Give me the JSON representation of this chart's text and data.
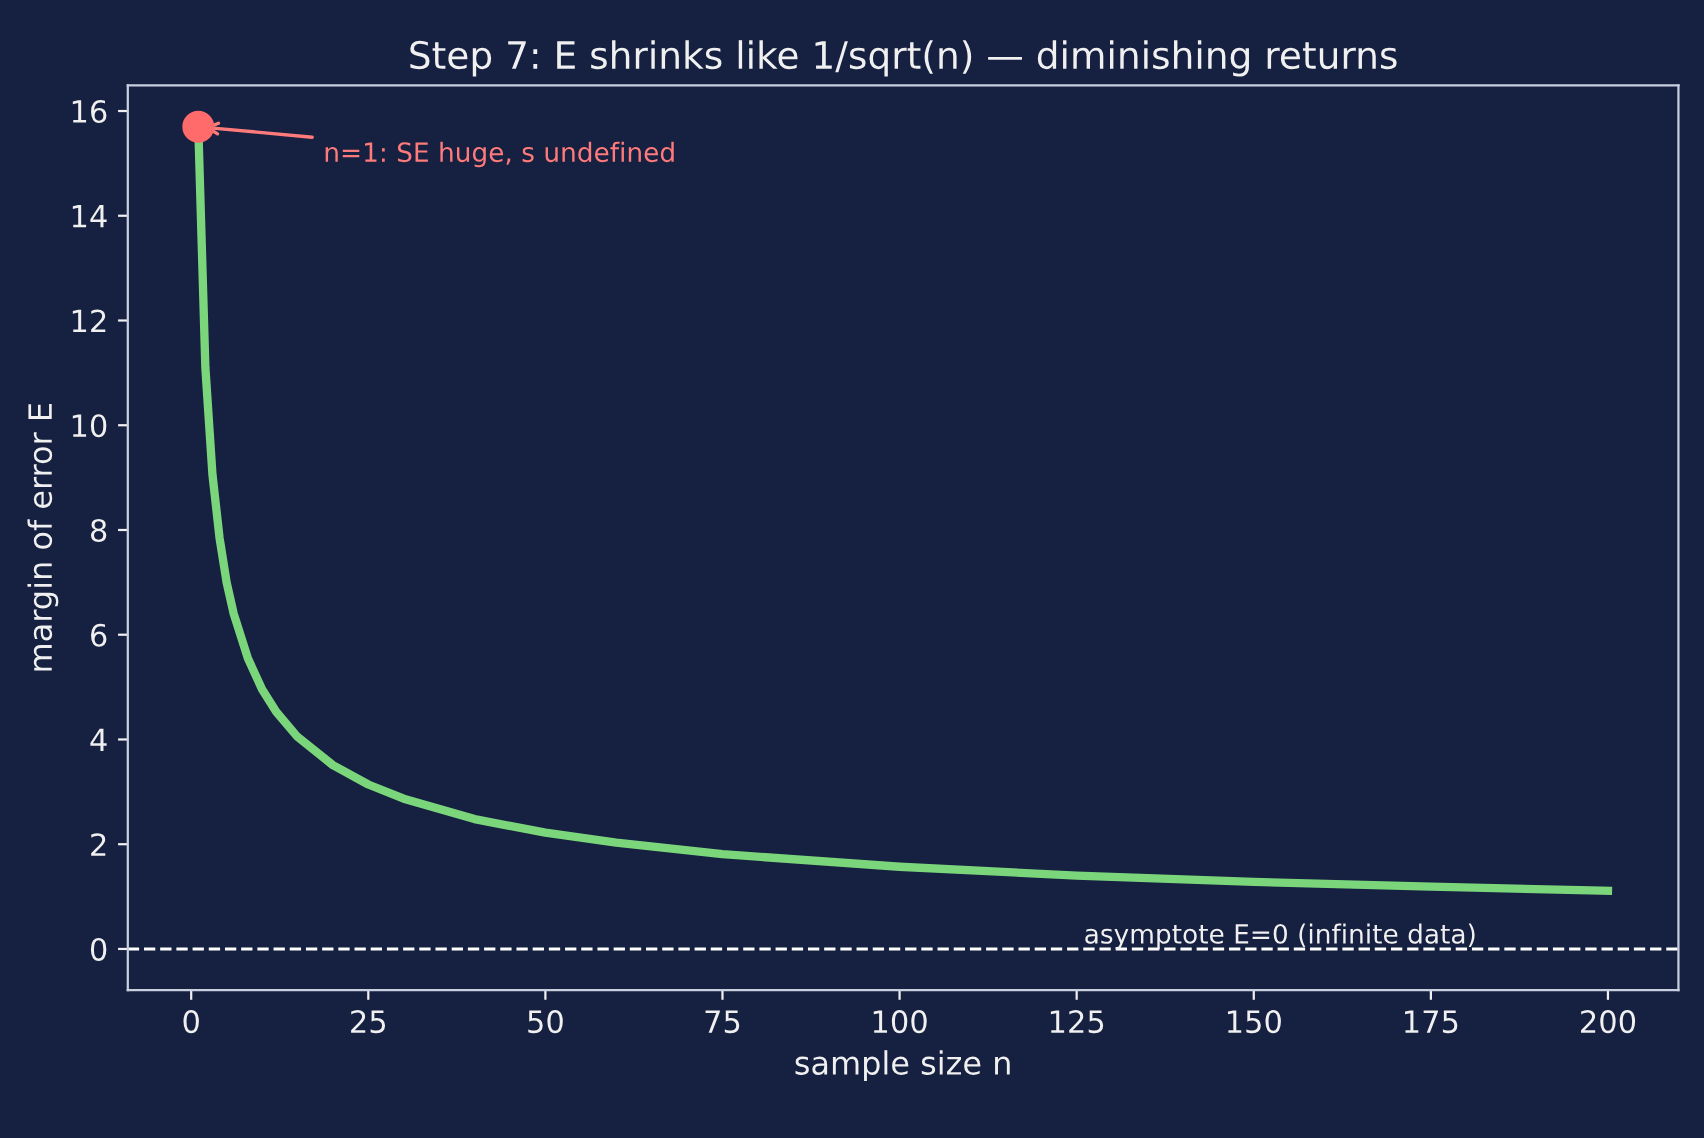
{
  "chart_data": {
    "type": "line",
    "title": "Step 7: E shrinks like 1/sqrt(n) — diminishing returns",
    "xlabel": "sample size n",
    "ylabel": "margin of error E",
    "series": [
      {
        "color": "#7bd67b",
        "x": [
          1,
          2,
          3,
          4,
          5,
          6,
          8,
          10,
          12,
          15,
          20,
          25,
          30,
          40,
          50,
          60,
          75,
          100,
          125,
          150,
          175,
          200
        ],
        "values": [
          15.7,
          11.1,
          9.06,
          7.85,
          7.0,
          6.4,
          5.55,
          4.96,
          4.53,
          4.05,
          3.51,
          3.14,
          2.87,
          2.48,
          2.22,
          2.03,
          1.81,
          1.57,
          1.4,
          1.28,
          1.19,
          1.11
        ]
      },
      {
        "type": "scatter",
        "color": "#ff6b6b",
        "x": [
          1
        ],
        "values": [
          15.7
        ]
      }
    ],
    "annotations": [
      {
        "text": "n=1: SE huge, s undefined",
        "x": 1,
        "y": 15.7
      }
    ],
    "ref_lines": [
      {
        "axis": "y",
        "value": 0,
        "label": "asymptote E=0 (infinite data)",
        "color": "#ffffff",
        "line_style": "dashed"
      }
    ],
    "xlim": [
      -8.95,
      209.95
    ],
    "ylim": [
      -0.785,
      16.49
    ],
    "xticks": [
      0,
      25,
      50,
      75,
      100,
      125,
      150,
      175,
      200
    ],
    "yticks": [
      0,
      2,
      4,
      6,
      8,
      10,
      12,
      14,
      16
    ],
    "grid": false
  }
}
